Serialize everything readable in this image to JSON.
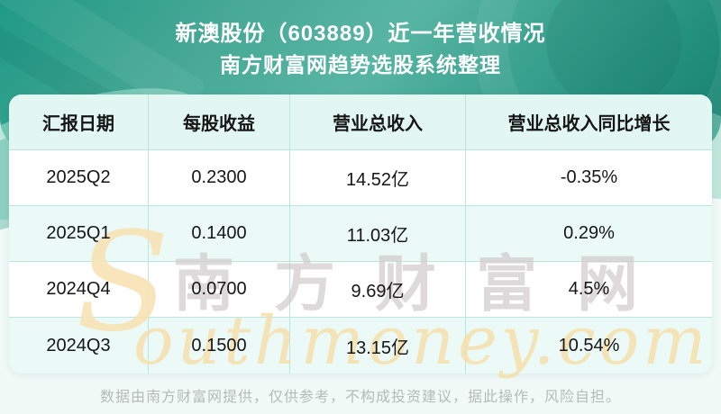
{
  "header": {
    "title": "新澳股份（603889）近一年营收情况",
    "subtitle": "南方财富网趋势选股系统整理"
  },
  "table": {
    "columns": [
      "汇报日期",
      "每股收益",
      "营业总收入",
      "营业总收入同比增长"
    ],
    "rows": [
      [
        "2025Q2",
        "0.2300",
        "14.52亿",
        "-0.35%"
      ],
      [
        "2025Q1",
        "0.1400",
        "11.03亿",
        "0.29%"
      ],
      [
        "2024Q4",
        "0.0700",
        "9.69亿",
        "4.5%"
      ],
      [
        "2024Q3",
        "0.1500",
        "13.15亿",
        "10.54%"
      ]
    ]
  },
  "chart_data": {
    "type": "table",
    "title": "新澳股份（603889）近一年营收情况",
    "subtitle": "南方财富网趋势选股系统整理",
    "columns": [
      "汇报日期",
      "每股收益",
      "营业总收入",
      "营业总收入同比增长"
    ],
    "rows": [
      {
        "report_period": "2025Q2",
        "eps": 0.23,
        "total_revenue": "14.52亿",
        "revenue_yoy_growth": "-0.35%"
      },
      {
        "report_period": "2025Q1",
        "eps": 0.14,
        "total_revenue": "11.03亿",
        "revenue_yoy_growth": "0.29%"
      },
      {
        "report_period": "2024Q4",
        "eps": 0.07,
        "total_revenue": "9.69亿",
        "revenue_yoy_growth": "4.5%"
      },
      {
        "report_period": "2024Q3",
        "eps": 0.15,
        "total_revenue": "13.15亿",
        "revenue_yoy_growth": "10.54%"
      }
    ]
  },
  "watermark": {
    "cn": "南方财富网",
    "en_initial": "S",
    "en_rest": "outhmoney.com"
  },
  "footer": {
    "disclaimer": "数据由南方财富网提供，仅供参考，不构成投资建议，据此操作，风险自担。"
  },
  "colors": {
    "hero_teal": "#2f9a88",
    "table_header_bg": "#e2f7f1",
    "row_alt_bg": "#ecfaf7",
    "cell_border": "#b9e6de",
    "watermark_cn": "#d2cbcd",
    "watermark_en": "#f6dfab"
  }
}
